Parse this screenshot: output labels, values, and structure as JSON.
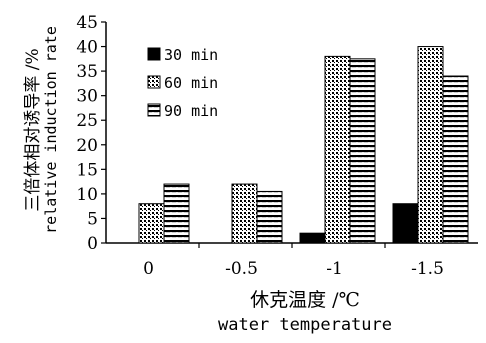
{
  "chart_data": {
    "type": "bar",
    "categories": [
      "0",
      "-0.5",
      "-1",
      "-1.5"
    ],
    "series": [
      {
        "name": "30 min",
        "values": [
          0,
          0,
          2,
          8
        ],
        "pattern": "solid"
      },
      {
        "name": "60 min",
        "values": [
          8,
          12,
          38,
          40
        ],
        "pattern": "dots"
      },
      {
        "name": "90 min",
        "values": [
          12,
          10.5,
          37.5,
          34
        ],
        "pattern": "hlines"
      }
    ],
    "ylim": [
      0,
      45
    ],
    "yticks": [
      "0",
      "5",
      "10",
      "15",
      "20",
      "25",
      "30",
      "35",
      "40",
      "45"
    ],
    "ytick_values": [
      0,
      5,
      10,
      15,
      20,
      25,
      30,
      35,
      40,
      45
    ],
    "xlabel_cn": "休克温度 /℃",
    "xlabel_en": "water temperature",
    "ylabel_cn": "三倍体相对诱导率 /%",
    "ylabel_en": "relative induction rate",
    "legend_position": "top-left",
    "grid": false,
    "colors": {
      "bar_fill": "#000000",
      "bar_stroke": "#000000",
      "pattern_bg": "#ffffff"
    }
  }
}
